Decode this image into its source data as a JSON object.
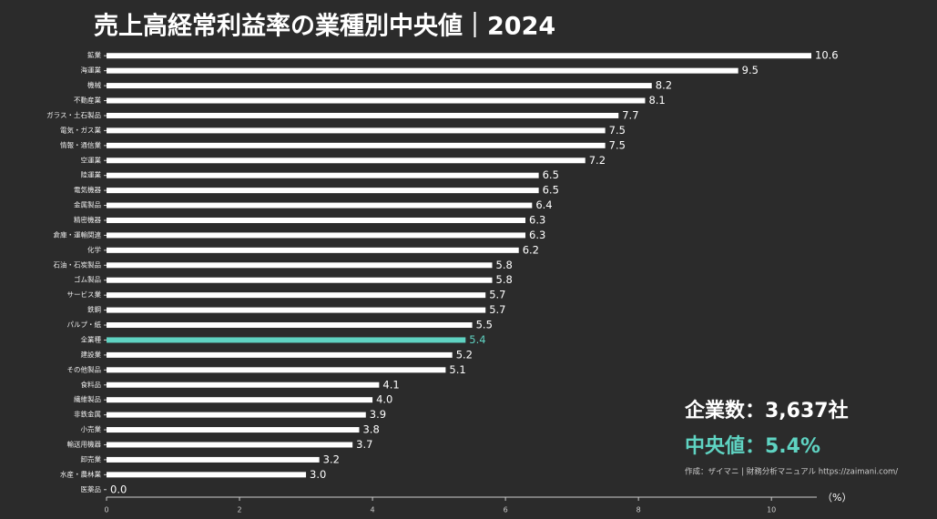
{
  "chart_data": {
    "type": "bar",
    "orientation": "horizontal",
    "title": "売上高経常利益率の業種別中央値｜2024",
    "x_label": "（%）",
    "categories": [
      "鉱業",
      "海運業",
      "機械",
      "不動産業",
      "ガラス・土石製品",
      "電気・ガス業",
      "情報・通信業",
      "空運業",
      "陸運業",
      "電気機器",
      "金属製品",
      "精密機器",
      "倉庫・運輸関連",
      "化学",
      "石油・石炭製品",
      "ゴム製品",
      "サービス業",
      "鉄鋼",
      "パルプ・紙",
      "全業種",
      "建設業",
      "その他製品",
      "食料品",
      "繊維製品",
      "非鉄金属",
      "小売業",
      "輸送用機器",
      "卸売業",
      "水産・農林業",
      "医薬品"
    ],
    "values": [
      10.6,
      9.5,
      8.2,
      8.1,
      7.7,
      7.5,
      7.5,
      7.2,
      6.5,
      6.5,
      6.4,
      6.3,
      6.3,
      6.2,
      5.8,
      5.8,
      5.7,
      5.7,
      5.5,
      5.4,
      5.2,
      5.1,
      4.1,
      4.0,
      3.9,
      3.8,
      3.7,
      3.2,
      3.0,
      0.0
    ],
    "value_labels": [
      "10.6",
      "9.5",
      "8.2",
      "8.1",
      "7.7",
      "7.5",
      "7.5",
      "7.2",
      "6.5",
      "6.5",
      "6.4",
      "6.3",
      "6.3",
      "6.2",
      "5.8",
      "5.8",
      "5.7",
      "5.7",
      "5.5",
      "5.4",
      "5.2",
      "5.1",
      "4.1",
      "4.0",
      "3.9",
      "3.8",
      "3.7",
      "3.2",
      "3.0",
      "0.0"
    ],
    "color": "#ffffff",
    "highlight": {
      "index": 19,
      "color": "#5fd3c2"
    },
    "xlim": [
      0,
      10.6
    ],
    "xticks": [
      0,
      2,
      4,
      6,
      8,
      10
    ],
    "grid": false,
    "annotations": [
      "企業数：3,637社",
      "中央値：5.4%",
      "作成：ザイマニ | 財務分析マニュアル https://zaimani.com/"
    ]
  }
}
